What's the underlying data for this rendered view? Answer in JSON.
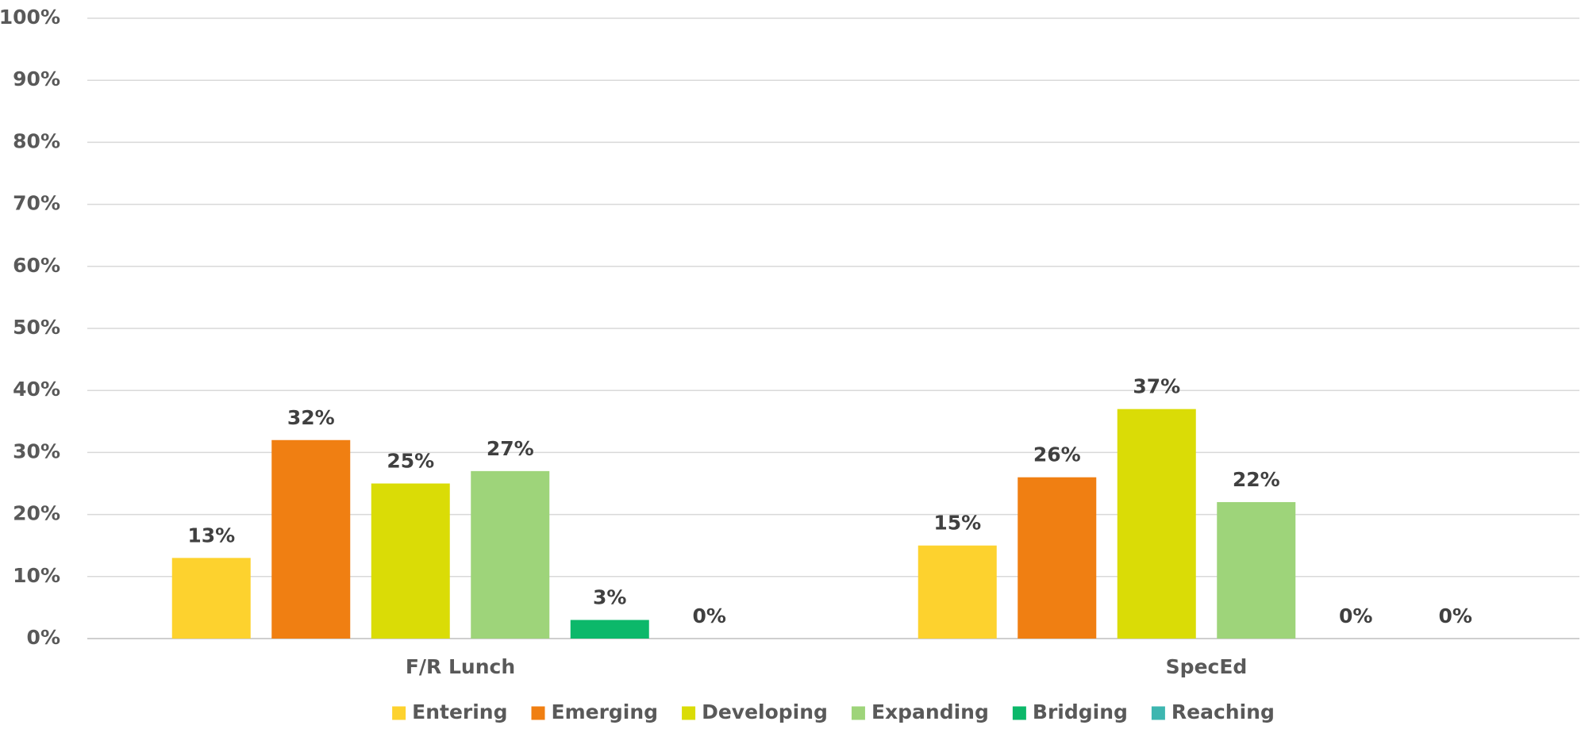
{
  "chart_data": {
    "type": "bar",
    "categories": [
      "F/R Lunch",
      "SpecEd"
    ],
    "series": [
      {
        "name": "Entering",
        "color": "#fdd22e",
        "values": [
          13,
          15
        ],
        "value_labels": [
          "13%",
          "15%"
        ]
      },
      {
        "name": "Emerging",
        "color": "#f07f12",
        "values": [
          32,
          26
        ],
        "value_labels": [
          "32%",
          "26%"
        ]
      },
      {
        "name": "Developing",
        "color": "#dadc06",
        "values": [
          25,
          37
        ],
        "value_labels": [
          "25%",
          "37%"
        ]
      },
      {
        "name": "Expanding",
        "color": "#9ed47a",
        "values": [
          27,
          22
        ],
        "value_labels": [
          "27%",
          "22%"
        ]
      },
      {
        "name": "Bridging",
        "color": "#0cb86a",
        "values": [
          3,
          0
        ],
        "value_labels": [
          "3%",
          "0%"
        ]
      },
      {
        "name": "Reaching",
        "color": "#3db6b0",
        "values": [
          0,
          0
        ],
        "value_labels": [
          "0%",
          "0%"
        ]
      }
    ],
    "ylim": [
      0,
      100
    ],
    "yticks": [
      {
        "value": 0,
        "label": "0%"
      },
      {
        "value": 10,
        "label": "10%"
      },
      {
        "value": 20,
        "label": "20%"
      },
      {
        "value": 30,
        "label": "30%"
      },
      {
        "value": 40,
        "label": "40%"
      },
      {
        "value": 50,
        "label": "50%"
      },
      {
        "value": 60,
        "label": "60%"
      },
      {
        "value": 70,
        "label": "70%"
      },
      {
        "value": 80,
        "label": "80%"
      },
      {
        "value": 90,
        "label": "90%"
      },
      {
        "value": 100,
        "label": "100%"
      }
    ],
    "grid": true,
    "legend": "bottom"
  }
}
